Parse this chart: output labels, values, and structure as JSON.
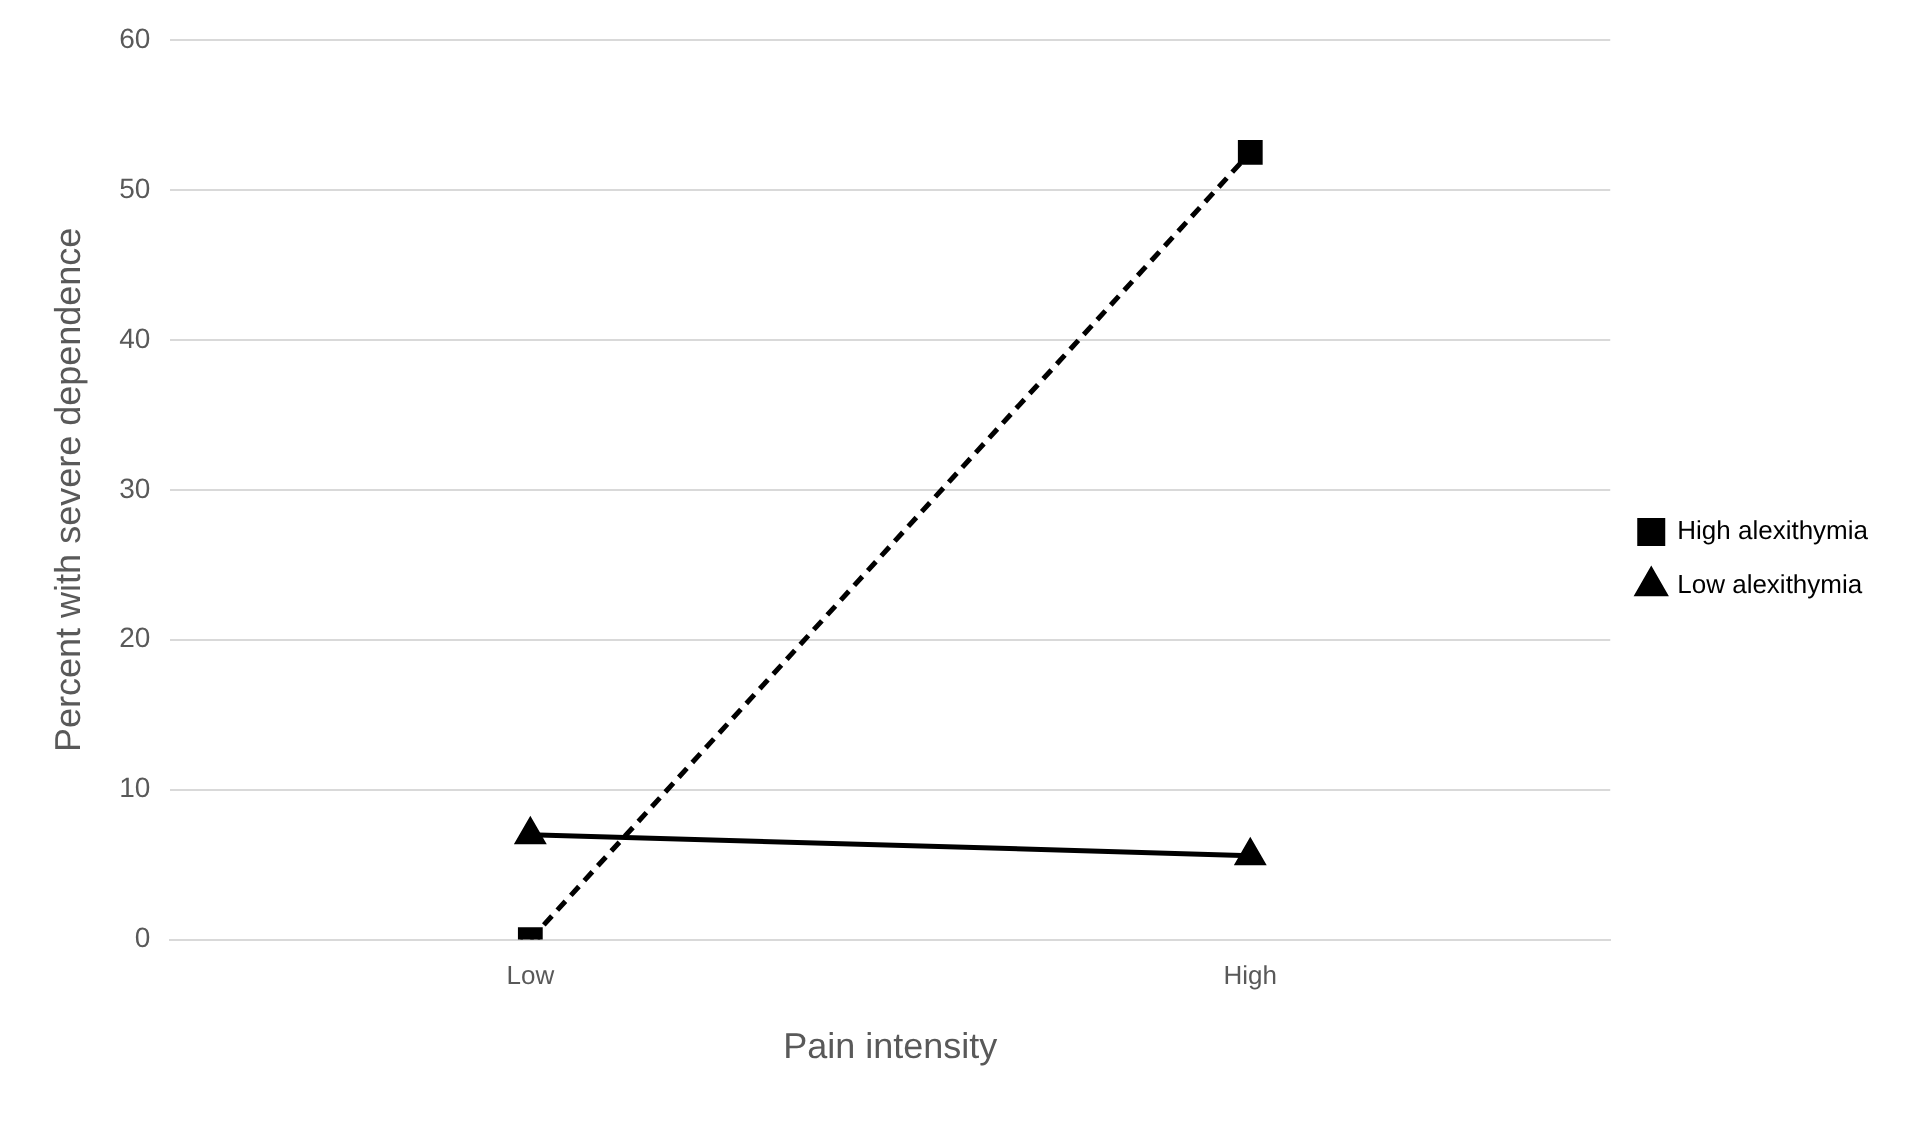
{
  "chart_data": {
    "type": "line",
    "xlabel": "Pain intensity",
    "ylabel": "Percent with severe dependence",
    "categories": [
      "Low",
      "High"
    ],
    "series": [
      {
        "name": "High alexithymia",
        "color": "#000000",
        "values": [
          0,
          52.5
        ],
        "marker": "square",
        "line_style": "dashed"
      },
      {
        "name": "Low alexithymia",
        "color": "#000000",
        "values": [
          7,
          5.6
        ],
        "marker": "triangle",
        "line_style": "solid"
      }
    ],
    "ylim": [
      0,
      60
    ],
    "yticks": [
      0,
      10,
      20,
      30,
      40,
      50,
      60
    ],
    "grid": "y",
    "legend": "right"
  }
}
